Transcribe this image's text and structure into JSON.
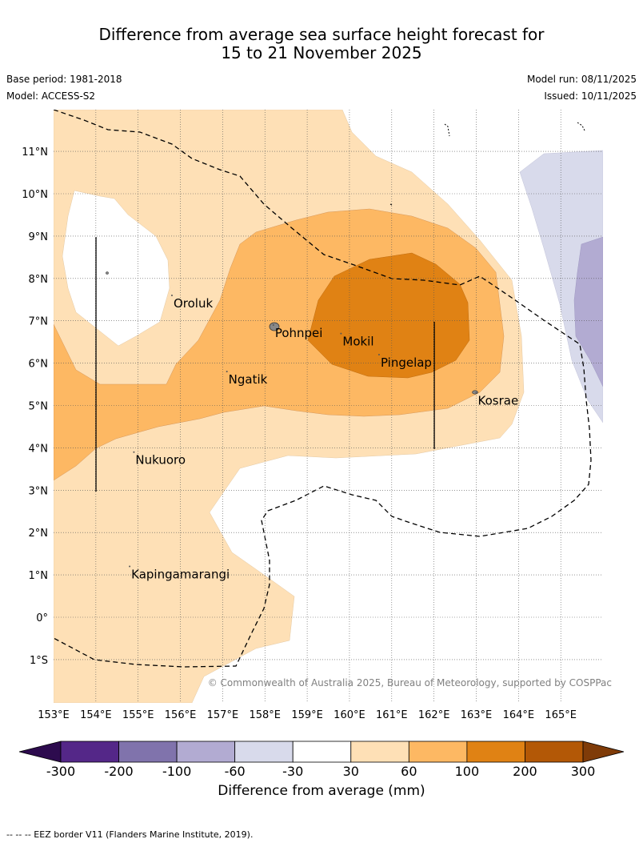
{
  "title": {
    "line1": "Difference from average sea surface height forecast for",
    "line2": "15 to 21 November 2025"
  },
  "meta": {
    "base_period": "Base period: 1981-2018",
    "model": "Model: ACCESS-S2",
    "model_run": "Model run: 08/11/2025",
    "issued": "Issued: 10/11/2025"
  },
  "map": {
    "lon_range": [
      153,
      166
    ],
    "lat_range": [
      -2,
      12
    ],
    "lon_ticks": [
      "153°E",
      "154°E",
      "155°E",
      "156°E",
      "157°E",
      "158°E",
      "159°E",
      "160°E",
      "161°E",
      "162°E",
      "163°E",
      "164°E",
      "165°E"
    ],
    "lat_ticks": [
      "11°N",
      "10°N",
      "9°N",
      "8°N",
      "7°N",
      "6°N",
      "5°N",
      "4°N",
      "3°N",
      "2°N",
      "1°N",
      "0°",
      "1°S"
    ],
    "places": [
      {
        "name": "Oroluk",
        "lon": 155.8,
        "lat": 7.6
      },
      {
        "name": "Pohnpei",
        "lon": 158.2,
        "lat": 6.9
      },
      {
        "name": "Mokil",
        "lon": 159.8,
        "lat": 6.7
      },
      {
        "name": "Pingelap",
        "lon": 160.7,
        "lat": 6.2
      },
      {
        "name": "Ngatik",
        "lon": 157.1,
        "lat": 5.8
      },
      {
        "name": "Kosrae",
        "lon": 163.0,
        "lat": 5.3
      },
      {
        "name": "Nukuoro",
        "lon": 154.9,
        "lat": 3.9
      },
      {
        "name": "Kapingamarangi",
        "lon": 154.8,
        "lat": 1.2
      }
    ],
    "copyright": "© Commonwealth of Australia 2025, Bureau of Meteorology, supported by COSPPac"
  },
  "legend": {
    "ticks": [
      "-300",
      "-200",
      "-100",
      "-60",
      "-30",
      "30",
      "60",
      "100",
      "200",
      "300"
    ],
    "colors": [
      "#2d0b4e",
      "#542788",
      "#8073ac",
      "#b2abd2",
      "#d8daeb",
      "#ffffff",
      "#fee0b6",
      "#fdb863",
      "#e08214",
      "#b35806",
      "#7f3b08"
    ],
    "label": "Difference from average (mm)"
  },
  "footer": "--  --  -- EEZ border V11 (Flanders Marine Institute, 2019)."
}
